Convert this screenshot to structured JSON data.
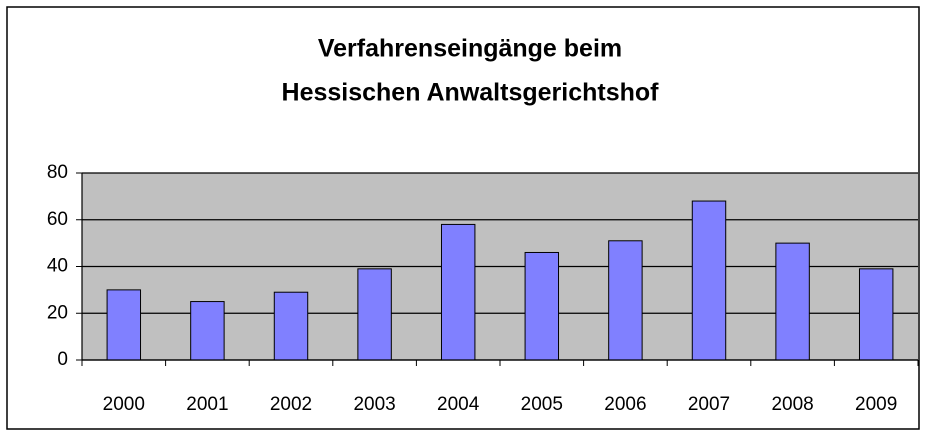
{
  "chart_data": {
    "type": "bar",
    "title": [
      "Verfahrenseingänge beim",
      "Hessischen Anwaltsgerichtshof"
    ],
    "categories": [
      "2000",
      "2001",
      "2002",
      "2003",
      "2004",
      "2005",
      "2006",
      "2007",
      "2008",
      "2009"
    ],
    "values": [
      30,
      25,
      29,
      39,
      58,
      46,
      51,
      68,
      50,
      39
    ],
    "color": "#8080ff",
    "ylim": [
      0,
      80
    ],
    "yticks": [
      0,
      20,
      40,
      60,
      80
    ],
    "grid": true
  }
}
